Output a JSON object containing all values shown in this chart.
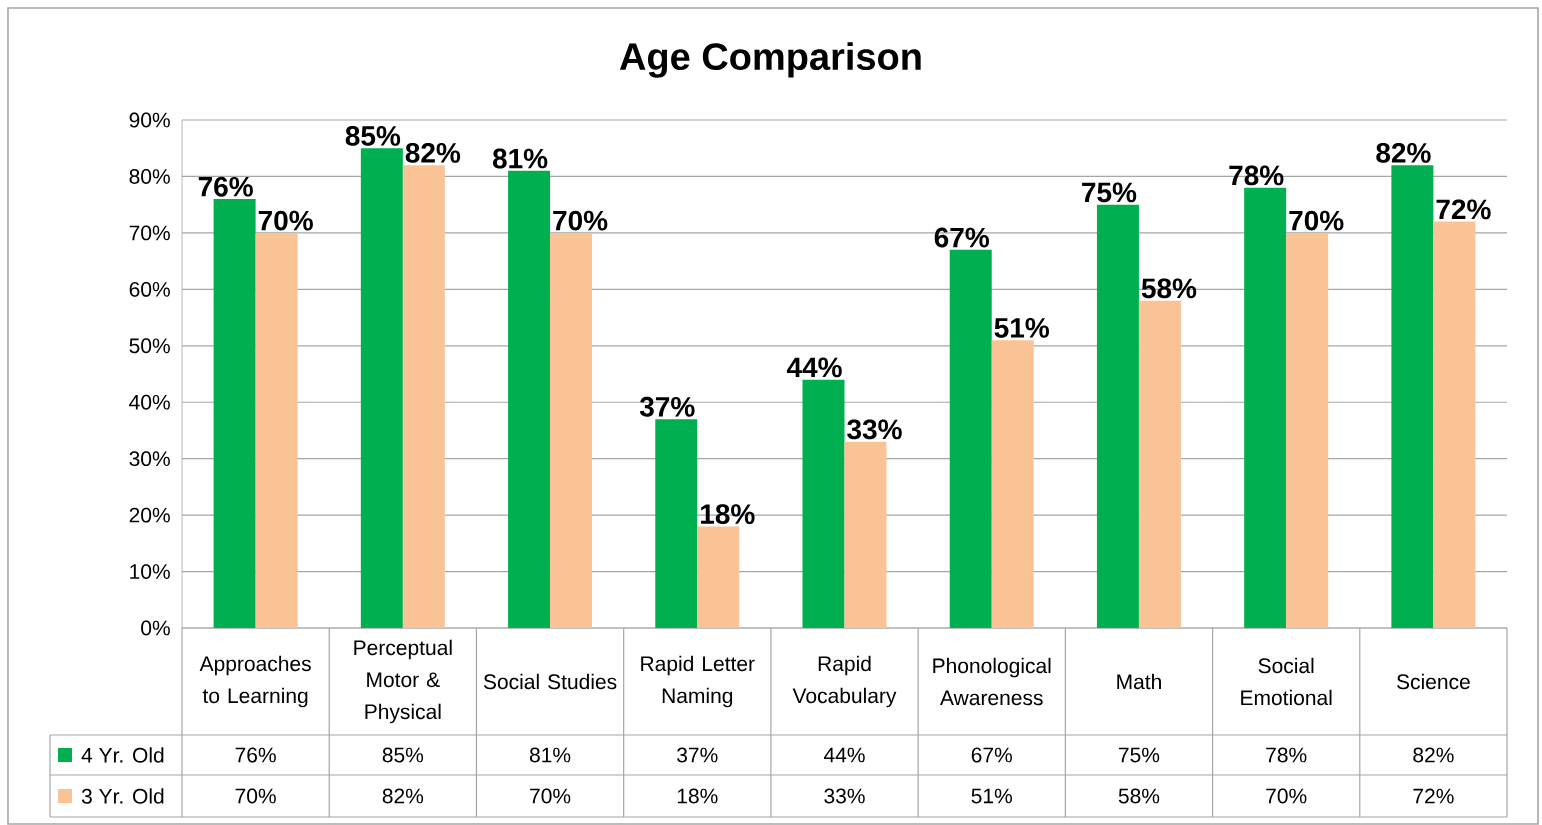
{
  "chart_data": {
    "type": "bar",
    "title": "Age Comparison",
    "categories": [
      "Approaches to Learning",
      "Perceptual Motor & Physical",
      "Social Studies",
      "Rapid Letter Naming",
      "Rapid Vocabulary",
      "Phonological Awareness",
      "Math",
      "Social Emotional",
      "Science"
    ],
    "series": [
      {
        "name": "4 Yr. Old",
        "color": "#00b050",
        "values": [
          76,
          85,
          81,
          37,
          44,
          67,
          75,
          78,
          82
        ],
        "value_labels": [
          "76%",
          "85%",
          "81%",
          "37%",
          "44%",
          "67%",
          "75%",
          "78%",
          "82%"
        ]
      },
      {
        "name": "3 Yr. Old",
        "color": "#f9c396",
        "values": [
          70,
          82,
          70,
          18,
          33,
          51,
          58,
          70,
          72
        ],
        "value_labels": [
          "70%",
          "82%",
          "70%",
          "18%",
          "33%",
          "51%",
          "58%",
          "70%",
          "72%"
        ]
      }
    ],
    "ylim": [
      0,
      90
    ],
    "yticks": [
      {
        "value": 0,
        "label": "0%"
      },
      {
        "value": 10,
        "label": "10%"
      },
      {
        "value": 20,
        "label": "20%"
      },
      {
        "value": 30,
        "label": "30%"
      },
      {
        "value": 40,
        "label": "40%"
      },
      {
        "value": 50,
        "label": "50%"
      },
      {
        "value": 60,
        "label": "60%"
      },
      {
        "value": 70,
        "label": "70%"
      },
      {
        "value": 80,
        "label": "80%"
      },
      {
        "value": 90,
        "label": "90%"
      }
    ],
    "grid": "y",
    "legend": "bottom"
  }
}
